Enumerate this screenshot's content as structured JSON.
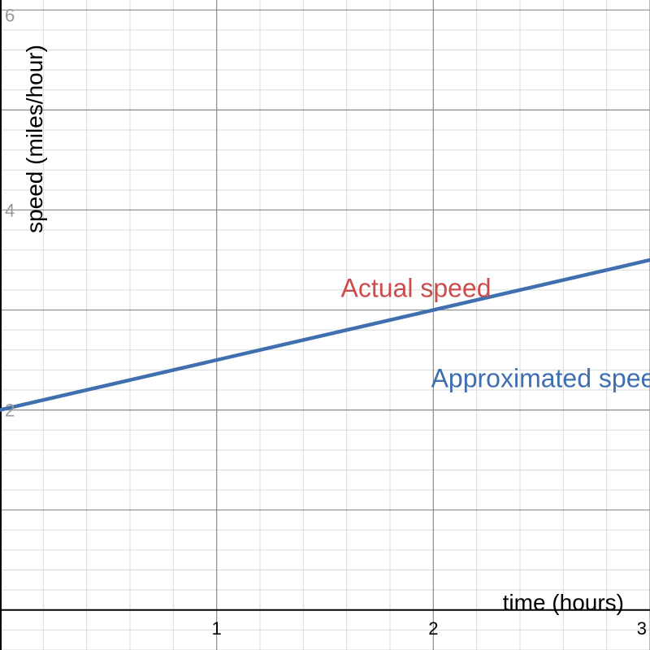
{
  "chart_data": {
    "type": "line",
    "xlabel": "time (hours)",
    "ylabel": "speed (miles/hour)",
    "xlim": [
      0,
      3
    ],
    "ylim": [
      -0.4,
      6.1
    ],
    "x_ticks": [
      {
        "value": 1,
        "label": "1"
      },
      {
        "value": 2,
        "label": "2"
      },
      {
        "value": 3,
        "label": "3"
      }
    ],
    "y_ticks": [
      {
        "value": 2,
        "label": "2"
      },
      {
        "value": 4,
        "label": "4"
      },
      {
        "value": 6,
        "label": "6"
      }
    ],
    "minor_grid_step": 0.2,
    "major_grid_step": 1,
    "grid": true,
    "series": [
      {
        "name": "Approximated speed",
        "x": [
          0,
          3
        ],
        "y": [
          2,
          3.5
        ],
        "color": "#3f6fae"
      }
    ],
    "annotations": [
      {
        "text": "Actual speed",
        "x": 1.92,
        "y": 3.13,
        "color": "#cc4c4c"
      },
      {
        "text": "Approximated speed",
        "x": 2.54,
        "y": 2.23,
        "color": "#3f6fae"
      }
    ],
    "colors": {
      "minor_grid": "#d9d9d9",
      "major_grid": "#8c8c8c",
      "axis": "#000000",
      "tick_text": "#000000",
      "y_tick_text": "#999999"
    }
  }
}
